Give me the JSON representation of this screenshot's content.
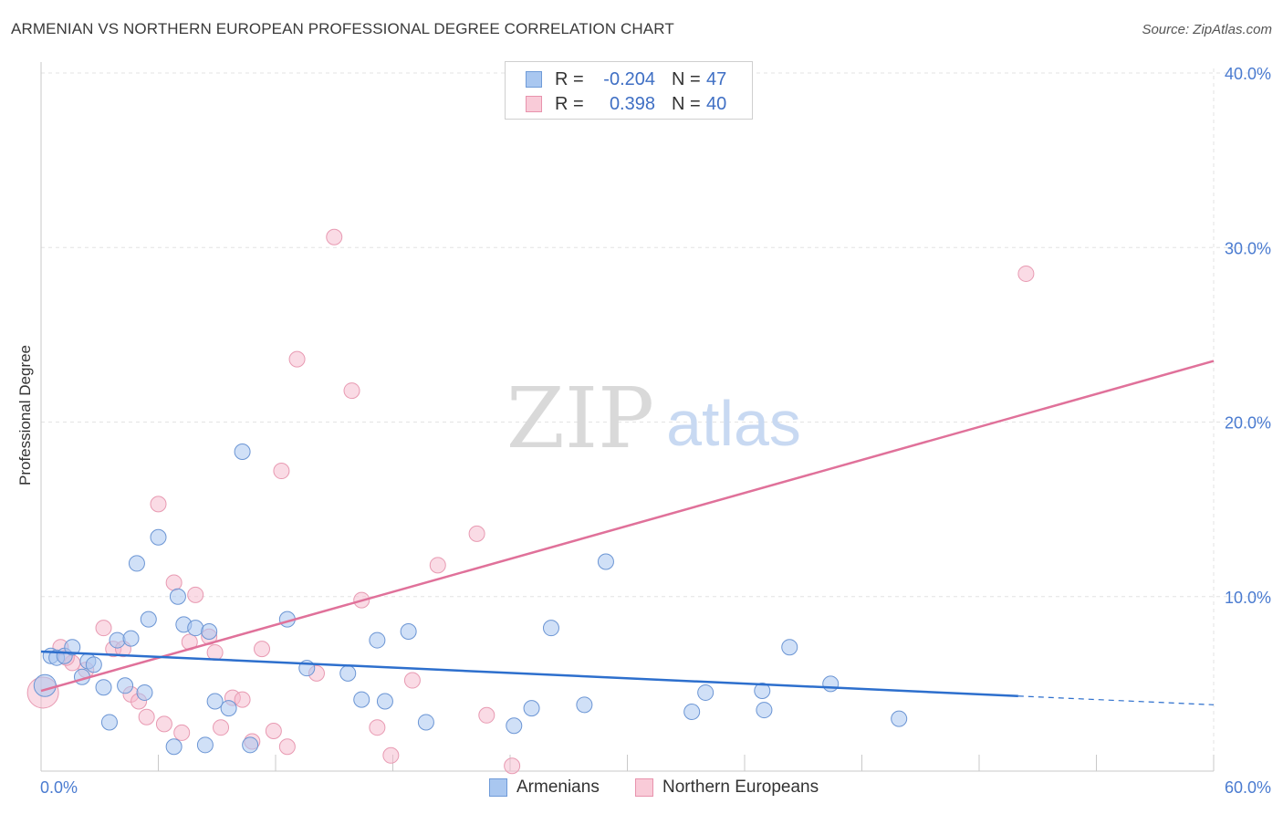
{
  "title": "ARMENIAN VS NORTHERN EUROPEAN PROFESSIONAL DEGREE CORRELATION CHART",
  "source": "Source: ZipAtlas.com",
  "watermark": {
    "zip": "ZIP",
    "atlas": "atlas"
  },
  "colors": {
    "blue": "#a9c7f0",
    "blue_line": "#2d6fcd",
    "pink": "#f5b8cb",
    "pink_line": "#e0719a",
    "tick_text": "#4a7bd0"
  },
  "legend": {
    "rows": [
      {
        "r_label": "R =",
        "r_value": "-0.204",
        "n_label": "N =",
        "n_value": "47"
      },
      {
        "r_label": "R =",
        "r_value": "0.398",
        "n_label": "N =",
        "n_value": "40"
      }
    ]
  },
  "bottom_legend": [
    "Armenians",
    "Northern Europeans"
  ],
  "chart_data": {
    "type": "scatter",
    "xlabel": "",
    "ylabel": "Professional Degree",
    "xlim": [
      0,
      60
    ],
    "ylim": [
      0,
      40
    ],
    "x_tick_labels": [
      "0.0%",
      "60.0%"
    ],
    "y_tick_labels": [
      "10.0%",
      "20.0%",
      "30.0%",
      "40.0%"
    ],
    "y_ticks": [
      10,
      20,
      30,
      40
    ],
    "grid": true,
    "series": [
      {
        "name": "Armenians",
        "points": [
          [
            0.2,
            4.9
          ],
          [
            0.5,
            6.6
          ],
          [
            0.8,
            6.5
          ],
          [
            1.2,
            6.6
          ],
          [
            1.6,
            7.1
          ],
          [
            2.1,
            5.4
          ],
          [
            2.4,
            6.3
          ],
          [
            2.7,
            6.1
          ],
          [
            3.2,
            4.8
          ],
          [
            3.5,
            2.8
          ],
          [
            3.9,
            7.5
          ],
          [
            4.3,
            4.9
          ],
          [
            4.6,
            7.6
          ],
          [
            4.9,
            11.9
          ],
          [
            5.3,
            4.5
          ],
          [
            5.5,
            8.7
          ],
          [
            6.0,
            13.4
          ],
          [
            6.8,
            1.4
          ],
          [
            7.0,
            10.0
          ],
          [
            7.3,
            8.4
          ],
          [
            7.9,
            8.2
          ],
          [
            8.4,
            1.5
          ],
          [
            8.6,
            8.0
          ],
          [
            8.9,
            4.0
          ],
          [
            9.6,
            3.6
          ],
          [
            10.3,
            18.3
          ],
          [
            10.7,
            1.5
          ],
          [
            12.6,
            8.7
          ],
          [
            13.6,
            5.9
          ],
          [
            15.7,
            5.6
          ],
          [
            16.4,
            4.1
          ],
          [
            17.2,
            7.5
          ],
          [
            17.6,
            4.0
          ],
          [
            18.8,
            8.0
          ],
          [
            19.7,
            2.8
          ],
          [
            25.1,
            3.6
          ],
          [
            26.1,
            8.2
          ],
          [
            27.8,
            3.8
          ],
          [
            28.9,
            12.0
          ],
          [
            33.3,
            3.4
          ],
          [
            34.0,
            4.5
          ],
          [
            36.9,
            4.6
          ],
          [
            37.0,
            3.5
          ],
          [
            38.3,
            7.1
          ],
          [
            40.4,
            5.0
          ],
          [
            43.9,
            3.0
          ],
          [
            24.2,
            2.6
          ]
        ],
        "trend": {
          "x0": 0,
          "y0": 6.85,
          "x1": 50,
          "y1": 4.3,
          "dash_to_x": 60,
          "dash_to_y": 3.8
        }
      },
      {
        "name": "Northern Europeans",
        "points": [
          [
            0.1,
            4.5
          ],
          [
            1.0,
            7.1
          ],
          [
            1.6,
            6.2
          ],
          [
            2.3,
            5.8
          ],
          [
            3.2,
            8.2
          ],
          [
            3.7,
            7.0
          ],
          [
            4.2,
            7.0
          ],
          [
            4.6,
            4.4
          ],
          [
            5.0,
            4.0
          ],
          [
            5.4,
            3.1
          ],
          [
            6.0,
            15.3
          ],
          [
            6.3,
            2.7
          ],
          [
            6.8,
            10.8
          ],
          [
            7.2,
            2.2
          ],
          [
            7.9,
            10.1
          ],
          [
            8.6,
            7.7
          ],
          [
            8.9,
            6.8
          ],
          [
            9.2,
            2.5
          ],
          [
            9.8,
            4.2
          ],
          [
            10.3,
            4.1
          ],
          [
            10.8,
            1.7
          ],
          [
            11.3,
            7.0
          ],
          [
            11.9,
            2.3
          ],
          [
            12.3,
            17.2
          ],
          [
            12.6,
            1.4
          ],
          [
            13.1,
            23.6
          ],
          [
            14.1,
            5.6
          ],
          [
            15.0,
            30.6
          ],
          [
            15.9,
            21.8
          ],
          [
            16.4,
            9.8
          ],
          [
            17.2,
            2.5
          ],
          [
            17.9,
            0.9
          ],
          [
            19.0,
            5.2
          ],
          [
            20.3,
            11.8
          ],
          [
            22.3,
            13.6
          ],
          [
            22.8,
            3.2
          ],
          [
            24.1,
            0.3
          ],
          [
            50.4,
            28.5
          ],
          [
            1.3,
            6.5
          ],
          [
            7.6,
            7.4
          ]
        ],
        "trend": {
          "x0": 0,
          "y0": 4.6,
          "x1": 60,
          "y1": 23.5
        }
      }
    ]
  }
}
